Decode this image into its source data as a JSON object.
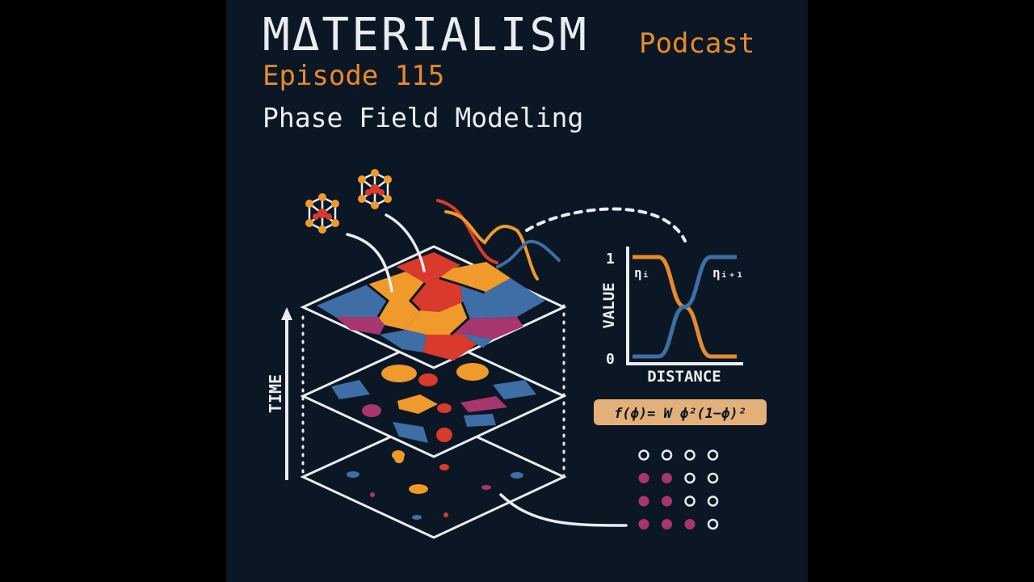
{
  "header": {
    "title": "MΔTERIALISM",
    "title_suffix": "Podcast",
    "episode": "Episode 115",
    "topic": "Phase Field Modeling"
  },
  "illustration": {
    "time_label": "TIME",
    "formula": "f(ϕ)= W ϕ²(1−ϕ)²"
  },
  "chart_data": {
    "type": "line",
    "xlabel": "DISTANCE",
    "ylabel": "VALUE",
    "yticks": [
      "1",
      "0"
    ],
    "ylim": [
      0,
      1
    ],
    "series": [
      {
        "name": "ηᵢ",
        "color": "#e68a2e",
        "shape": "decreasing-sigmoid",
        "values": [
          1,
          1,
          0.5,
          0,
          0
        ]
      },
      {
        "name": "ηᵢ₊₁",
        "color": "#3e6ea5",
        "shape": "increasing-sigmoid",
        "values": [
          0,
          0,
          0.5,
          1,
          1
        ]
      }
    ]
  },
  "dot_grid": {
    "rows": [
      [
        0,
        0,
        0,
        0
      ],
      [
        1,
        1,
        0,
        0
      ],
      [
        1,
        1,
        0,
        0
      ],
      [
        1,
        1,
        1,
        0
      ]
    ],
    "filled_color": "#a8366e",
    "empty_color": "#e9edf1"
  },
  "colors": {
    "background": "#0b1724",
    "orange": "#f09a2c",
    "red": "#d93a2b",
    "blue": "#3e6ea5",
    "magenta": "#a8366e",
    "formula_bg": "#e3b07a"
  }
}
